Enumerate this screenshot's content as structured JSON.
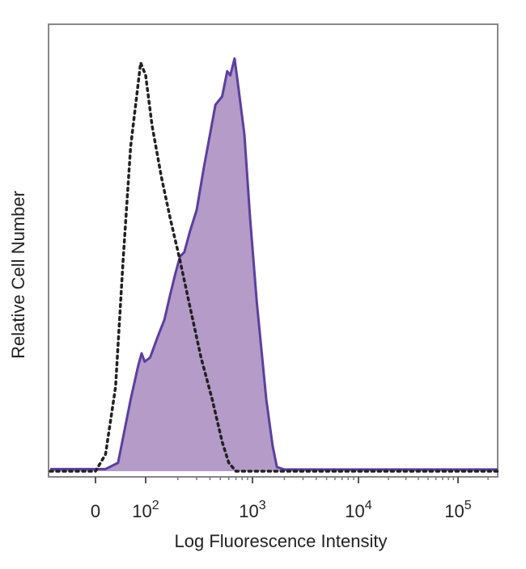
{
  "chart_data": {
    "type": "area",
    "title": "",
    "xlabel": "Log Fluorescence Intensity",
    "ylabel": "Relative Cell Number",
    "x_scale": "biexponential",
    "grid": false,
    "legend": "none",
    "ylim": [
      0,
      1
    ],
    "xlim": [
      -100,
      250000
    ],
    "x_ticks": [
      {
        "value": 0,
        "base": "0",
        "exp": ""
      },
      {
        "value": 100,
        "base": "10",
        "exp": "2"
      },
      {
        "value": 1000,
        "base": "10",
        "exp": "3"
      },
      {
        "value": 10000,
        "base": "10",
        "exp": "4"
      },
      {
        "value": 100000,
        "base": "10",
        "exp": "5"
      }
    ],
    "series": [
      {
        "style": "filled",
        "fill_color": "#b49bc8",
        "line_color": "#5b3fa0",
        "points": [
          [
            -100,
            0.005
          ],
          [
            20,
            0.005
          ],
          [
            45,
            0.02
          ],
          [
            70,
            0.17
          ],
          [
            85,
            0.25
          ],
          [
            92,
            0.28
          ],
          [
            98,
            0.26
          ],
          [
            110,
            0.27
          ],
          [
            130,
            0.32
          ],
          [
            150,
            0.36
          ],
          [
            170,
            0.42
          ],
          [
            190,
            0.47
          ],
          [
            210,
            0.51
          ],
          [
            230,
            0.52
          ],
          [
            260,
            0.57
          ],
          [
            300,
            0.62
          ],
          [
            350,
            0.72
          ],
          [
            400,
            0.8
          ],
          [
            450,
            0.87
          ],
          [
            520,
            0.89
          ],
          [
            580,
            0.95
          ],
          [
            620,
            0.94
          ],
          [
            680,
            0.98
          ],
          [
            740,
            0.91
          ],
          [
            840,
            0.8
          ],
          [
            950,
            0.6
          ],
          [
            1100,
            0.4
          ],
          [
            1350,
            0.17
          ],
          [
            1550,
            0.06
          ],
          [
            1700,
            0.01
          ],
          [
            2000,
            0.004
          ],
          [
            250000,
            0.004
          ]
        ]
      },
      {
        "style": "dotted",
        "line_color": "#222222",
        "points": [
          [
            -100,
            0.0
          ],
          [
            0,
            0.0
          ],
          [
            20,
            0.04
          ],
          [
            40,
            0.2
          ],
          [
            55,
            0.5
          ],
          [
            70,
            0.77
          ],
          [
            90,
            0.97
          ],
          [
            100,
            0.94
          ],
          [
            115,
            0.82
          ],
          [
            140,
            0.7
          ],
          [
            170,
            0.6
          ],
          [
            210,
            0.5
          ],
          [
            260,
            0.39
          ],
          [
            330,
            0.27
          ],
          [
            420,
            0.17
          ],
          [
            520,
            0.07
          ],
          [
            600,
            0.02
          ],
          [
            700,
            0.0
          ],
          [
            250000,
            0.0
          ]
        ]
      }
    ]
  }
}
